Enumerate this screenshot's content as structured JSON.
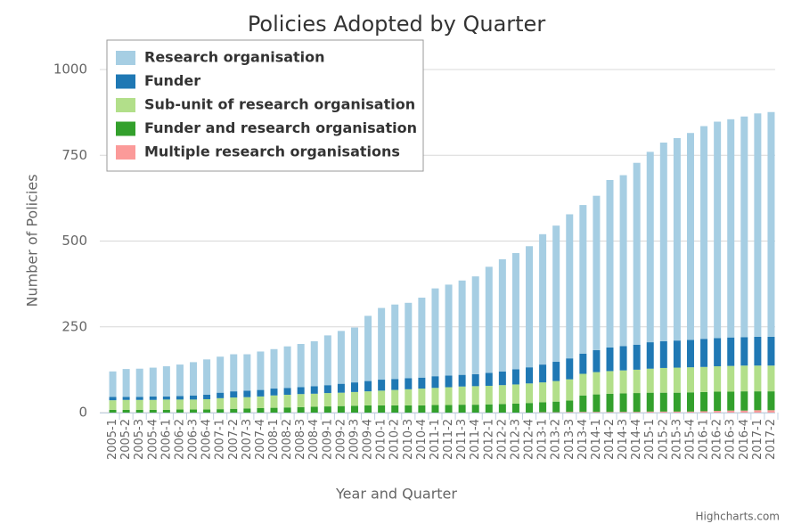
{
  "chart_data": {
    "type": "stacked_bar",
    "title": "Policies Adopted by Quarter",
    "x_label": "Year and Quarter",
    "y_label": "Number of Policies",
    "credit": "Highcharts.com",
    "categories": [
      "2005-1",
      "2005-2",
      "2005-3",
      "2005-4",
      "2006-1",
      "2006-2",
      "2006-3",
      "2006-4",
      "2007-1",
      "2007-2",
      "2007-3",
      "2007-4",
      "2008-1",
      "2008-2",
      "2008-3",
      "2008-4",
      "2009-1",
      "2009-2",
      "2009-3",
      "2009-4",
      "2010-1",
      "2010-2",
      "2010-3",
      "2010-4",
      "2011-1",
      "2011-2",
      "2011-3",
      "2011-4",
      "2012-1",
      "2012-2",
      "2012-3",
      "2012-4",
      "2013-1",
      "2013-2",
      "2013-3",
      "2013-4",
      "2014-1",
      "2014-2",
      "2014-3",
      "2014-4",
      "2015-1",
      "2015-2",
      "2015-3",
      "2015-4",
      "2016-1",
      "2016-2",
      "2016-3",
      "2016-4",
      "2017-1",
      "2017-2"
    ],
    "ylim": [
      0,
      1000
    ],
    "yticks": [
      0,
      250,
      500,
      750,
      1000
    ],
    "grid": true,
    "legend": "top-left",
    "series": [
      {
        "name": "Research organisation",
        "color": "#a6cee3",
        "values": [
          74,
          81,
          82,
          84,
          88,
          92,
          97,
          103,
          105,
          108,
          106,
          112,
          115,
          121,
          126,
          131,
          145,
          154,
          160,
          190,
          209,
          217,
          220,
          233,
          256,
          265,
          275,
          285,
          309,
          327,
          339,
          353,
          380,
          397,
          420,
          433,
          450,
          488,
          498,
          530,
          555,
          579,
          590,
          603,
          620,
          631,
          636,
          643,
          651,
          655
        ]
      },
      {
        "name": "Funder",
        "color": "#1f78b4",
        "values": [
          10,
          9,
          9,
          10,
          9,
          10,
          12,
          13,
          16,
          18,
          19,
          19,
          20,
          20,
          20,
          22,
          23,
          26,
          28,
          30,
          32,
          32,
          32,
          32,
          34,
          34,
          34,
          35,
          38,
          40,
          44,
          47,
          52,
          56,
          61,
          59,
          64,
          69,
          71,
          73,
          77,
          78,
          79,
          80,
          82,
          82,
          83,
          83,
          84,
          84
        ]
      },
      {
        "name": "Sub-unit of research organisation",
        "color": "#b2df8a",
        "values": [
          28,
          29,
          29,
          29,
          30,
          29,
          29,
          30,
          32,
          33,
          33,
          34,
          36,
          37,
          38,
          38,
          39,
          39,
          40,
          41,
          43,
          45,
          47,
          49,
          50,
          52,
          53,
          54,
          54,
          55,
          56,
          57,
          58,
          60,
          62,
          63,
          65,
          66,
          67,
          68,
          70,
          72,
          73,
          73,
          73,
          74,
          75,
          75,
          75,
          75
        ]
      },
      {
        "name": "Funder and research organisation",
        "color": "#33a02c",
        "values": [
          8,
          8,
          8,
          8,
          8,
          9,
          9,
          9,
          10,
          11,
          12,
          13,
          14,
          15,
          16,
          17,
          18,
          19,
          20,
          21,
          21,
          21,
          21,
          21,
          22,
          22,
          23,
          23,
          24,
          25,
          26,
          28,
          29,
          31,
          33,
          48,
          51,
          53,
          54,
          55,
          55,
          55,
          55,
          56,
          56,
          56,
          55,
          56,
          55,
          55
        ]
      },
      {
        "name": "Multiple research organisations",
        "color": "#fb9a99",
        "values": [
          0,
          0,
          0,
          0,
          0,
          0,
          0,
          0,
          0,
          0,
          0,
          0,
          0,
          0,
          0,
          0,
          0,
          0,
          0,
          0,
          0,
          0,
          0,
          0,
          0,
          0,
          0,
          0,
          0,
          0,
          0,
          0,
          1,
          1,
          2,
          2,
          2,
          2,
          2,
          2,
          3,
          3,
          3,
          3,
          4,
          5,
          6,
          6,
          7,
          7
        ]
      }
    ]
  }
}
